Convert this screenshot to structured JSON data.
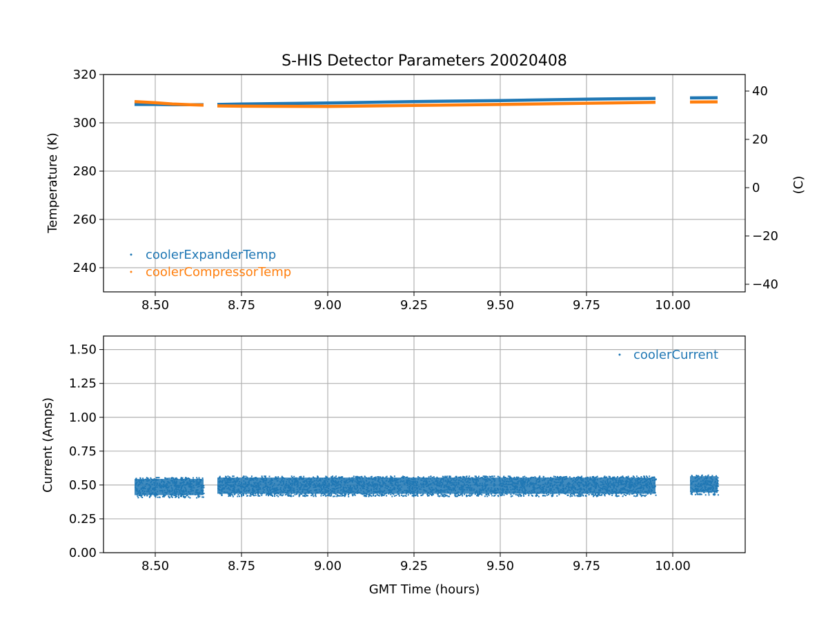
{
  "figure": {
    "title": "S-HIS Detector Parameters 20020408"
  },
  "colors": {
    "expander": "#1f77b4",
    "compressor": "#ff7f0e",
    "current": "#1f77b4",
    "grid": "#b0b0b0",
    "axis": "#000000"
  },
  "chart_data": [
    {
      "type": "scatter",
      "name": "temperatures",
      "ylabel": "Temperature (K)",
      "y2label": "(C)",
      "xlim": [
        8.35,
        10.21
      ],
      "ylim": [
        230,
        320
      ],
      "y2lim": [
        -43.15,
        46.85
      ],
      "x_ticks": [
        "8.50",
        "8.75",
        "9.00",
        "9.25",
        "9.50",
        "9.75",
        "10.00"
      ],
      "x_tick_values": [
        8.5,
        8.75,
        9.0,
        9.25,
        9.5,
        9.75,
        10.0
      ],
      "y_ticks": [
        "240",
        "260",
        "280",
        "300",
        "320"
      ],
      "y_tick_values": [
        240,
        260,
        280,
        300,
        320
      ],
      "y2_ticks": [
        "40",
        "20",
        "0",
        "−20",
        "−40"
      ],
      "y2_tick_values": [
        40,
        20,
        0,
        -20,
        -40
      ],
      "grid": true,
      "legend_position": "lower-left",
      "series": [
        {
          "name": "coolerExpanderTemp",
          "color": "#1f77b4",
          "segments": [
            {
              "x": [
                8.44,
                8.5,
                8.55,
                8.6,
                8.64
              ],
              "y": [
                307.6,
                307.6,
                307.5,
                307.5,
                307.5
              ]
            },
            {
              "x": [
                8.68,
                8.75,
                9.0,
                9.25,
                9.5,
                9.75,
                9.95
              ],
              "y": [
                307.6,
                307.8,
                308.2,
                308.8,
                309.2,
                309.8,
                310.1
              ]
            },
            {
              "x": [
                10.05,
                10.13
              ],
              "y": [
                310.3,
                310.4
              ]
            }
          ]
        },
        {
          "name": "coolerCompressorTemp",
          "color": "#ff7f0e",
          "segments": [
            {
              "x": [
                8.44,
                8.5,
                8.55,
                8.6,
                8.64
              ],
              "y": [
                308.8,
                308.3,
                307.8,
                307.5,
                307.3
              ]
            },
            {
              "x": [
                8.68,
                8.75,
                9.0,
                9.25,
                9.5,
                9.75,
                9.95
              ],
              "y": [
                307.0,
                306.9,
                306.8,
                307.2,
                307.6,
                308.1,
                308.5
              ]
            },
            {
              "x": [
                10.05,
                10.13
              ],
              "y": [
                308.6,
                308.7
              ]
            }
          ]
        }
      ]
    },
    {
      "type": "scatter",
      "name": "current",
      "xlabel": "GMT Time (hours)",
      "ylabel": "Current (Amps)",
      "xlim": [
        8.35,
        10.21
      ],
      "ylim": [
        0.0,
        1.6
      ],
      "x_ticks": [
        "8.50",
        "8.75",
        "9.00",
        "9.25",
        "9.50",
        "9.75",
        "10.00"
      ],
      "x_tick_values": [
        8.5,
        8.75,
        9.0,
        9.25,
        9.5,
        9.75,
        10.0
      ],
      "y_ticks": [
        "0.00",
        "0.25",
        "0.50",
        "0.75",
        "1.00",
        "1.25",
        "1.50"
      ],
      "y_tick_values": [
        0.0,
        0.25,
        0.5,
        0.75,
        1.0,
        1.25,
        1.5
      ],
      "grid": true,
      "legend_position": "upper-right",
      "series": [
        {
          "name": "coolerCurrent",
          "color": "#1f77b4",
          "bands": [
            {
              "x_start": 8.44,
              "x_end": 8.64,
              "y_min": 0.41,
              "y_max": 0.56
            },
            {
              "x_start": 8.68,
              "x_end": 9.95,
              "y_min": 0.42,
              "y_max": 0.57
            },
            {
              "x_start": 10.05,
              "x_end": 10.13,
              "y_min": 0.43,
              "y_max": 0.58
            }
          ]
        }
      ]
    }
  ]
}
